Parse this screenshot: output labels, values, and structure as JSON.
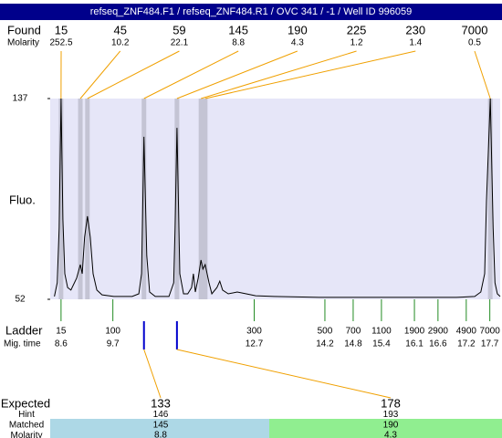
{
  "title": "refseq_ZNF484.F1 / refseq_ZNF484.R1 / OVC 341 / -1 / Well ID 996059",
  "found": {
    "label": "Found",
    "molarity_label": "Molarity",
    "peaks": [
      {
        "size": "15",
        "molarity": "252.5",
        "time": 8.6
      },
      {
        "size": "45",
        "molarity": "10.2",
        "time": 9.01
      },
      {
        "size": "59",
        "molarity": "22.1",
        "time": 9.16
      },
      {
        "size": "145",
        "molarity": "8.8",
        "time": 10.36
      },
      {
        "size": "190",
        "molarity": "4.3",
        "time": 11.06
      },
      {
        "size": "225",
        "molarity": "1.2",
        "time": 11.57
      },
      {
        "size": "230",
        "molarity": "1.4",
        "time": 11.66
      },
      {
        "size": "7000",
        "molarity": "0.5",
        "time": 17.71
      }
    ]
  },
  "chart_data": {
    "type": "line",
    "y_label": "Fluo.",
    "xlim": [
      8.37,
      17.92
    ],
    "ylim": [
      52,
      137
    ],
    "yticks": [
      52,
      137
    ],
    "color": "#000000",
    "x": [
      8.46,
      8.52,
      8.56,
      8.6,
      8.64,
      8.68,
      8.74,
      8.81,
      8.93,
      9.01,
      9.05,
      9.1,
      9.16,
      9.22,
      9.28,
      9.36,
      9.47,
      9.72,
      10.11,
      10.25,
      10.31,
      10.36,
      10.42,
      10.48,
      10.6,
      10.89,
      10.99,
      11.02,
      11.06,
      11.12,
      11.2,
      11.29,
      11.37,
      11.41,
      11.45,
      11.51,
      11.57,
      11.61,
      11.66,
      11.74,
      11.8,
      11.91,
      11.97,
      12.03,
      12.15,
      12.34,
      12.53,
      12.73,
      13.12,
      14.08,
      15.05,
      16.02,
      16.99,
      17.38,
      17.51,
      17.59,
      17.63,
      17.71,
      17.77,
      17.81,
      17.86,
      17.92
    ],
    "values": [
      53.2,
      59.0,
      82.1,
      137,
      86.0,
      62.8,
      57.0,
      55.9,
      60.9,
      66.7,
      62.8,
      78.3,
      87.2,
      78.3,
      62.8,
      55.9,
      53.9,
      53.2,
      53.2,
      54.3,
      62.8,
      120.8,
      70.5,
      55.1,
      53.2,
      53.2,
      59.0,
      82.1,
      124.6,
      62.8,
      54.3,
      54.3,
      57.0,
      62.8,
      55.1,
      60.9,
      68.6,
      64.8,
      66.7,
      59.0,
      54.3,
      57.0,
      59.7,
      55.9,
      54.3,
      55.1,
      54.3,
      53.5,
      53.2,
      52.8,
      52.8,
      52.8,
      52.8,
      53.2,
      55.1,
      62.8,
      93.7,
      137,
      82.1,
      59.0,
      54.3,
      53.2
    ]
  },
  "ladder": {
    "label": "Ladder",
    "time_label": "Mig. time",
    "bands": [
      {
        "size": "15",
        "time": 8.6
      },
      {
        "size": "100",
        "time": 9.7
      },
      {
        "size": "300",
        "time": 12.7
      },
      {
        "size": "500",
        "time": 14.2
      },
      {
        "size": "700",
        "time": 14.8
      },
      {
        "size": "1100",
        "time": 15.4
      },
      {
        "size": "1900",
        "time": 16.1
      },
      {
        "size": "2900",
        "time": 16.6
      },
      {
        "size": "4900",
        "time": 17.2
      },
      {
        "size": "7000",
        "time": 17.7
      }
    ]
  },
  "expected": {
    "labels": [
      "Expected",
      "Hint",
      "Matched",
      "Molarity"
    ],
    "items": [
      {
        "size": "133",
        "hint": "146",
        "matched": "145",
        "molarity": "8.8",
        "time": 10.36,
        "color": "#add8e6"
      },
      {
        "size": "178",
        "hint": "193",
        "matched": "190",
        "molarity": "4.3",
        "time": 11.06,
        "color": "#90ee90"
      }
    ]
  }
}
